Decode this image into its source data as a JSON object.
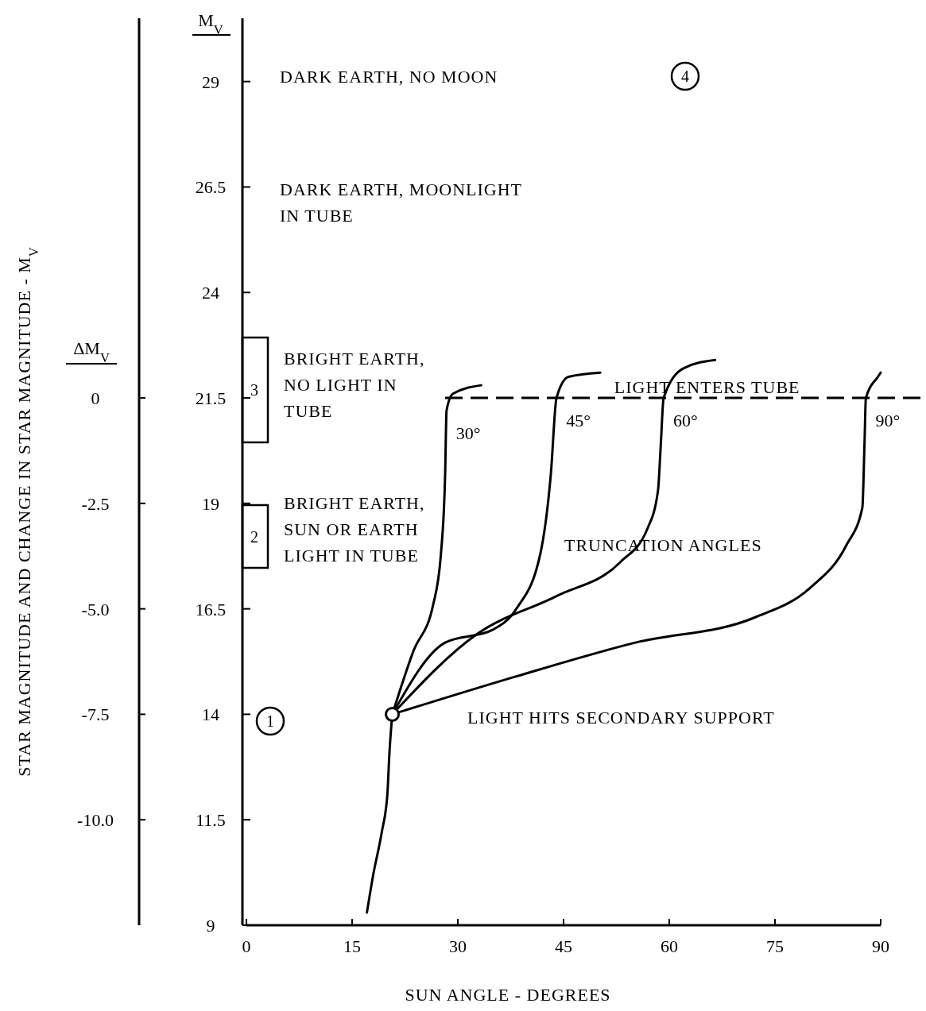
{
  "chart_data": {
    "type": "line",
    "xlabel": "SUN ANGLE - DEGREES",
    "ylabel": "M$_{V}$",
    "y2label": "ΔM$_{V}$",
    "xlim": [
      0,
      90
    ],
    "xticks": [
      0,
      15,
      30,
      45,
      60,
      75,
      90
    ],
    "ylim": [
      9,
      30.5
    ],
    "yticks": [
      9,
      {
        "value": 11.5,
        "label": "11.5"
      },
      14,
      {
        "value": 16.5,
        "label": "16.5"
      },
      19,
      {
        "value": 21.5,
        "label": "21.5"
      },
      24,
      {
        "value": 26.5,
        "label": "26.5"
      },
      29
    ],
    "y2lim": [
      -12.5,
      9
    ],
    "y2ticks": [
      {
        "value": -10,
        "label": "-10.0"
      },
      {
        "value": -7.5,
        "label": "-7.5"
      },
      {
        "value": -5,
        "label": "-5.0"
      },
      {
        "value": -2.5,
        "label": "-2.5"
      },
      0
    ],
    "grid": false,
    "marker": "none",
    "line_style": "solid",
    "series": [
      {
        "color": "#000000",
        "x": [
          17.1,
          18.0,
          19.2,
          20.0,
          20.3,
          20.7
        ],
        "values": [
          9.3,
          10.2,
          11.2,
          12.1,
          13.1,
          14.0
        ]
      },
      {
        "name": "30°",
        "color": "#000000",
        "x": [
          20.7,
          23.7,
          26.5,
          27.6,
          28.2,
          28.4,
          29.3,
          33.3
        ],
        "values": [
          14.0,
          15.5,
          16.6,
          17.8,
          19.7,
          21.2,
          21.6,
          21.8
        ]
      },
      {
        "name": "45°",
        "color": "#000000",
        "x": [
          20.7,
          28.2,
          34.9,
          38.3,
          41.7,
          43.2,
          44.0,
          45.7,
          50.2
        ],
        "values": [
          14.0,
          15.7,
          16.0,
          16.5,
          17.8,
          19.7,
          21.5,
          22.0,
          22.1
        ]
      },
      {
        "name": "60°",
        "color": "#000000",
        "x": [
          20.7,
          32.7,
          44.0,
          53.0,
          56.9,
          58.4,
          58.8,
          59.2,
          62.0,
          66.5
        ],
        "values": [
          14.0,
          15.9,
          16.8,
          17.6,
          18.4,
          19.3,
          20.4,
          21.5,
          22.2,
          22.4
        ]
      },
      {
        "name": "90°",
        "color": "#000000",
        "x": [
          20.7,
          38.3,
          55.2,
          72.2,
          80.0,
          85.1,
          87.4,
          87.7,
          87.9,
          89.6,
          90.0
        ],
        "values": [
          14.0,
          14.9,
          15.7,
          16.3,
          17.0,
          18.0,
          18.9,
          20.4,
          21.5,
          22.0,
          22.1
        ]
      },
      {
        "type": "scatter",
        "color": "#000000",
        "marker": "circle",
        "x": [
          20.7
        ],
        "values": [
          14.0
        ]
      }
    ],
    "ref_lines": [
      {
        "axis": "y",
        "value": 21.5,
        "label": "LIGHT ENTERS TUBE",
        "color": "#000000",
        "line_style": "dashed"
      }
    ],
    "annotations": [
      "STAR MAGNITUDE AND CHANGE IN STAR MAGNITUDE - M$_{V}$",
      "DARK EARTH, NO MOON",
      "DARK EARTH, MOONLIGHT IN TUBE",
      "BRIGHT EARTH, NO LIGHT IN TUBE",
      "BRIGHT EARTH, SUN OR EARTH LIGHT IN TUBE",
      "TRUNCATION ANGLES",
      "LIGHT HITS SECONDARY SUPPORT",
      "1",
      "4",
      "3",
      "2"
    ]
  }
}
